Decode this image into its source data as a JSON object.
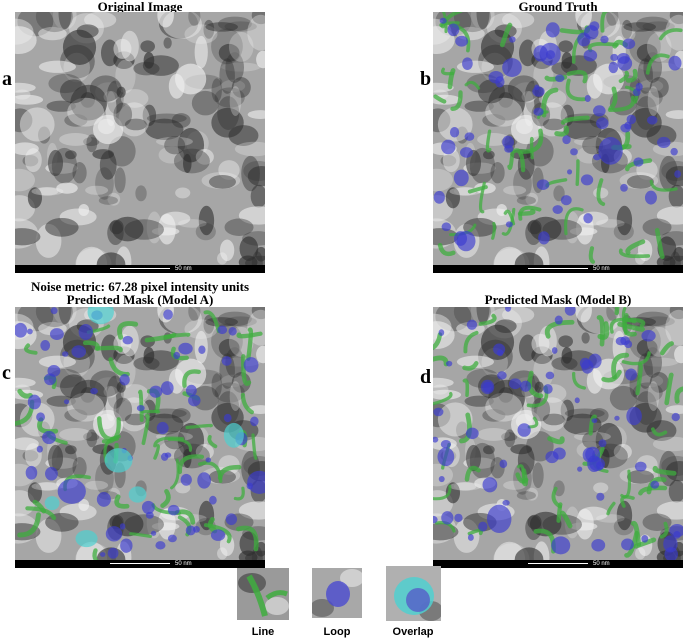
{
  "panels": [
    {
      "letter": "a",
      "title": "Original Image",
      "scale_label": "50 nm"
    },
    {
      "letter": "b",
      "title": "Ground Truth",
      "scale_label": "50 nm"
    },
    {
      "letter": "c",
      "title": "Predicted Mask (Model A)",
      "scale_label": "50 nm"
    },
    {
      "letter": "d",
      "title": "Predicted Mask (Model B)",
      "scale_label": "50 nm"
    }
  ],
  "noise_metric": "Noise metric: 67.28 pixel intensity units",
  "legend": [
    {
      "label": "Line"
    },
    {
      "label": "Loop"
    },
    {
      "label": "Overlap"
    }
  ]
}
